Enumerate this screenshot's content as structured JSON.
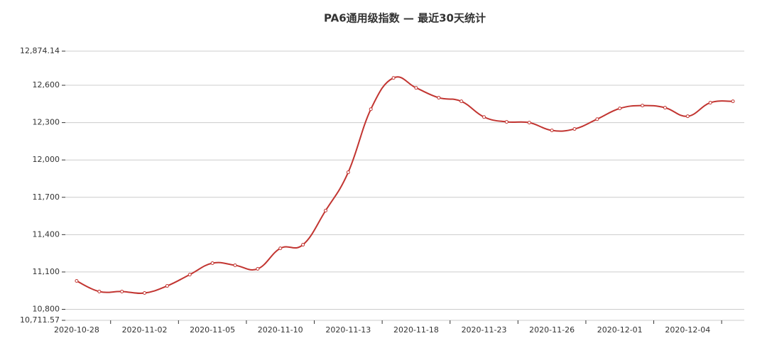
{
  "chart_data": {
    "type": "line",
    "title": "PA6通用级指数 — 最近30天统计",
    "categories": [
      "2020-10-28",
      null,
      null,
      "2020-11-02",
      null,
      null,
      "2020-11-05",
      null,
      null,
      "2020-11-10",
      null,
      null,
      "2020-11-13",
      null,
      null,
      "2020-11-18",
      null,
      null,
      "2020-11-23",
      null,
      null,
      "2020-11-26",
      null,
      null,
      "2020-12-01",
      null,
      null,
      "2020-12-04",
      null,
      null
    ],
    "series": [
      {
        "name": "PA6通用级指数",
        "color": "#c23531",
        "values": [
          11028,
          10943,
          10943,
          10931,
          10988,
          11079,
          11171,
          11154,
          11125,
          11290,
          11319,
          11593,
          11901,
          12408,
          12659,
          12579,
          12500,
          12471,
          12345,
          12306,
          12300,
          12237,
          12249,
          12328,
          12414,
          12437,
          12420,
          12351,
          12460,
          12471
        ]
      }
    ],
    "ylim": [
      10711.57,
      12874.14
    ],
    "yticks": [
      {
        "value": 10711.57,
        "label": "10,711.57"
      },
      {
        "value": 10800,
        "label": "10,800"
      },
      {
        "value": 11100,
        "label": "11,100"
      },
      {
        "value": 11400,
        "label": "11,400"
      },
      {
        "value": 11700,
        "label": "11,700"
      },
      {
        "value": 12000,
        "label": "12,000"
      },
      {
        "value": 12300,
        "label": "12,300"
      },
      {
        "value": 12600,
        "label": "12,600"
      },
      {
        "value": 12874.14,
        "label": "12,874.14"
      }
    ],
    "grid": true
  }
}
